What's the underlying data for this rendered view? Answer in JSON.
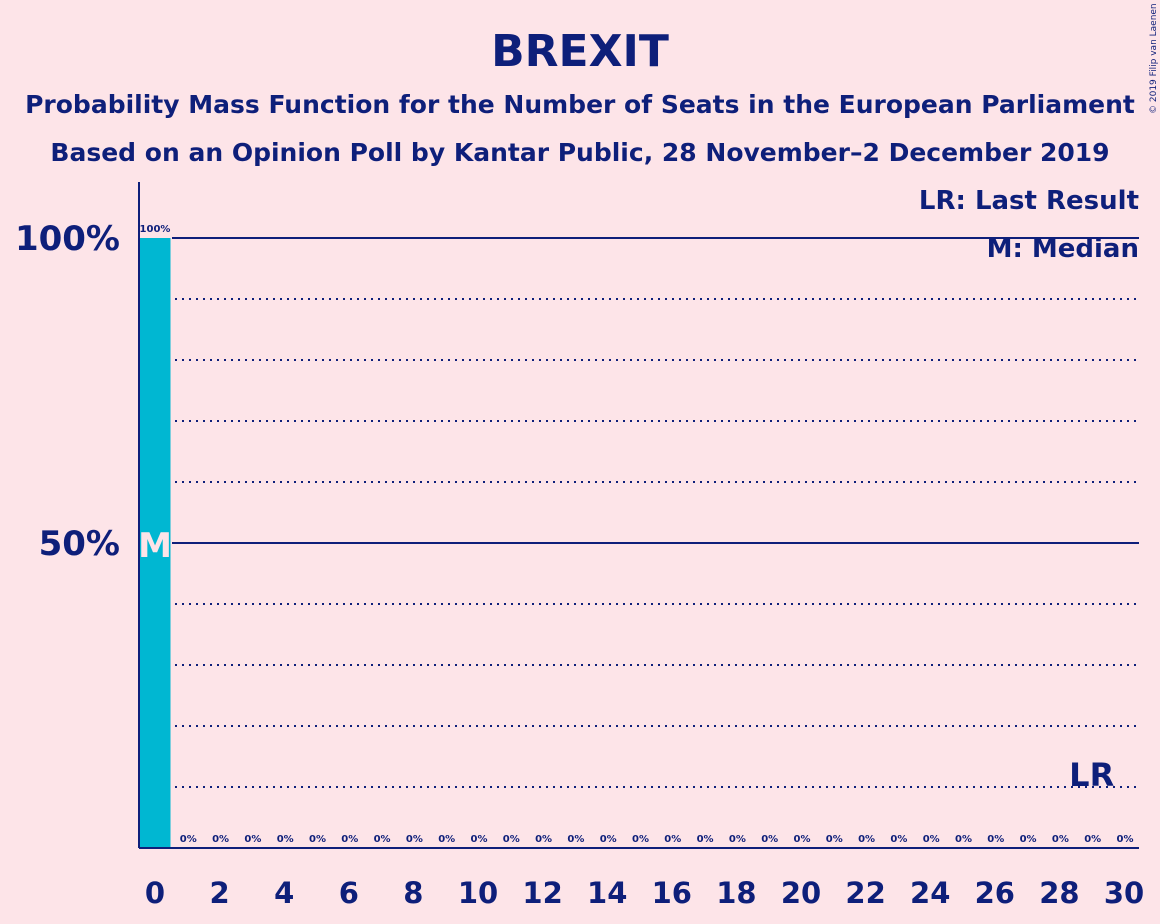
{
  "copyright": "© 2019 Filip van Laenen",
  "colors": {
    "background": "#FDE4E8",
    "text": "#0E1F7A",
    "bar": "#00B7D2"
  },
  "chart_data": {
    "type": "bar",
    "title": "BREXIT",
    "subtitle_lines": [
      "Probability Mass Function for the Number of Seats in the European Parliament",
      "Based on an Opinion Poll by Kantar Public, 28 November–2 December 2019"
    ],
    "x": [
      0,
      1,
      2,
      3,
      4,
      5,
      6,
      7,
      8,
      9,
      10,
      11,
      12,
      13,
      14,
      15,
      16,
      17,
      18,
      19,
      20,
      21,
      22,
      23,
      24,
      25,
      26,
      27,
      28,
      29,
      30
    ],
    "values": [
      100,
      0,
      0,
      0,
      0,
      0,
      0,
      0,
      0,
      0,
      0,
      0,
      0,
      0,
      0,
      0,
      0,
      0,
      0,
      0,
      0,
      0,
      0,
      0,
      0,
      0,
      0,
      0,
      0,
      0,
      0
    ],
    "value_labels": [
      "100%",
      "0%",
      "0%",
      "0%",
      "0%",
      "0%",
      "0%",
      "0%",
      "0%",
      "0%",
      "0%",
      "0%",
      "0%",
      "0%",
      "0%",
      "0%",
      "0%",
      "0%",
      "0%",
      "0%",
      "0%",
      "0%",
      "0%",
      "0%",
      "0%",
      "0%",
      "0%",
      "0%",
      "0%",
      "0%",
      "0%"
    ],
    "x_tick_labels": [
      "0",
      "2",
      "4",
      "6",
      "8",
      "10",
      "12",
      "14",
      "16",
      "18",
      "20",
      "22",
      "24",
      "26",
      "28",
      "30"
    ],
    "y_tick_labels": [
      "50%",
      "100%"
    ],
    "ylim": [
      0,
      100
    ],
    "xlim": [
      0,
      30
    ],
    "grid": "dotted every 10%, solid at 50% and 100%",
    "legend": [
      "LR: Last Result",
      "M: Median"
    ],
    "legend_placement": "top-right",
    "median": {
      "x": 0,
      "label": "M"
    },
    "last_result": {
      "x": 29,
      "label": "LR"
    }
  }
}
